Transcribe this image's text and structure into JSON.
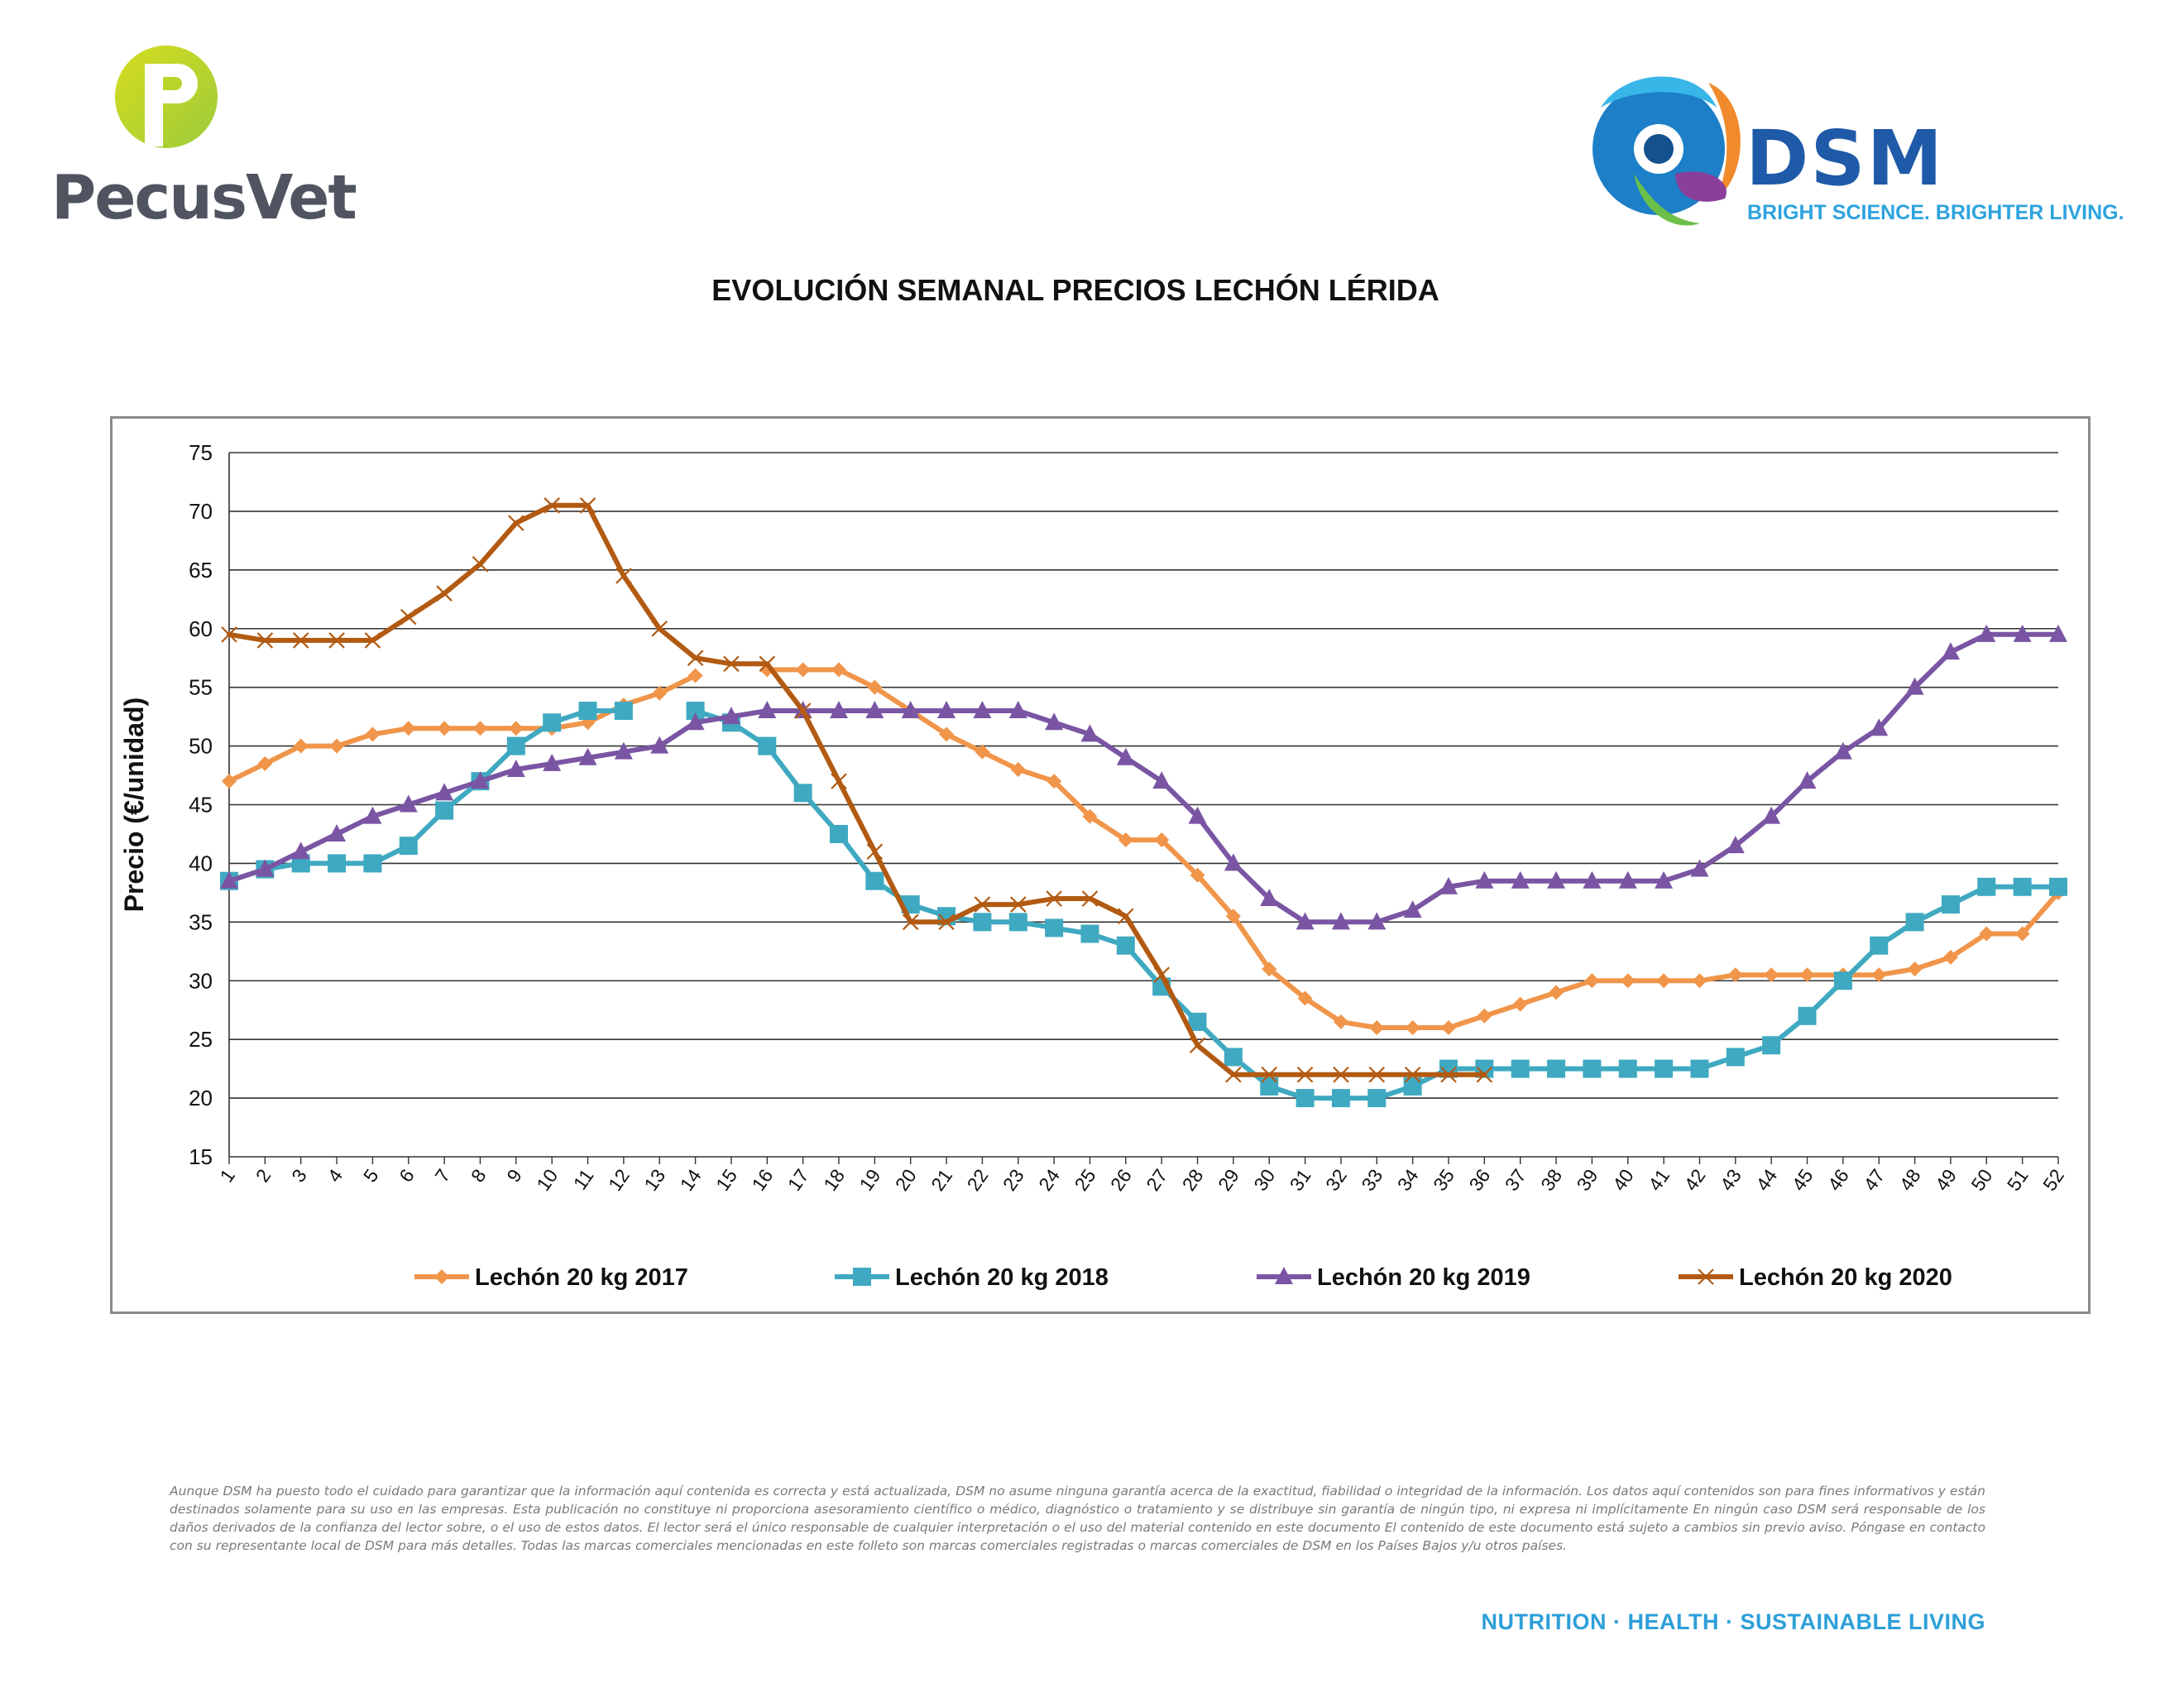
{
  "header": {
    "left_logo": "PecusVet",
    "right_logo": "DSM",
    "right_tagline": "BRIGHT SCIENCE. BRIGHTER LIVING."
  },
  "chart_data": {
    "type": "line",
    "title": "EVOLUCIÓN SEMANAL PRECIOS LECHÓN LÉRIDA",
    "xlabel": "",
    "ylabel": "Precio (€/unidad)",
    "ylim": [
      15,
      75
    ],
    "yticks": [
      15,
      20,
      25,
      30,
      35,
      40,
      45,
      50,
      55,
      60,
      65,
      70,
      75
    ],
    "grid": true,
    "legend": "bottom",
    "x": [
      1,
      2,
      3,
      4,
      5,
      6,
      7,
      8,
      9,
      10,
      11,
      12,
      13,
      14,
      15,
      16,
      17,
      18,
      19,
      20,
      21,
      22,
      23,
      24,
      25,
      26,
      27,
      28,
      29,
      30,
      31,
      32,
      33,
      34,
      35,
      36,
      37,
      38,
      39,
      40,
      41,
      42,
      43,
      44,
      45,
      46,
      47,
      48,
      49,
      50,
      51,
      52
    ],
    "series": [
      {
        "name": "Lechón 20 kg 2017",
        "color": "#f0954a",
        "marker": "diamond",
        "values": [
          47,
          48.5,
          50,
          50,
          51,
          51.5,
          51.5,
          51.5,
          51.5,
          51.5,
          52,
          53.5,
          54.5,
          56,
          null,
          56.5,
          56.5,
          56.5,
          55,
          53,
          51,
          49.5,
          48,
          47,
          44,
          42,
          42,
          39,
          35.5,
          31,
          28.5,
          26.5,
          26,
          26,
          26,
          27,
          28,
          29,
          30,
          30,
          30,
          30,
          30.5,
          30.5,
          30.5,
          30.5,
          30.5,
          31,
          32,
          34,
          34,
          37.5
        ]
      },
      {
        "name": "Lechón 20 kg 2018",
        "color": "#3fa9c1",
        "marker": "square",
        "values": [
          38.5,
          39.5,
          40,
          40,
          40,
          41.5,
          44.5,
          47,
          50,
          52,
          53,
          53,
          null,
          53,
          52,
          50,
          46,
          42.5,
          38.5,
          36.5,
          35.5,
          35,
          35,
          34.5,
          34,
          33,
          29.5,
          26.5,
          23.5,
          21,
          20,
          20,
          20,
          21,
          22.5,
          22.5,
          22.5,
          22.5,
          22.5,
          22.5,
          22.5,
          22.5,
          23.5,
          24.5,
          27,
          30,
          33,
          35,
          36.5,
          38,
          38,
          38
        ]
      },
      {
        "name": "Lechón 20 kg 2019",
        "color": "#7a55a3",
        "marker": "triangle",
        "values": [
          38.5,
          39.5,
          41,
          42.5,
          44,
          45,
          46,
          47,
          48,
          48.5,
          49,
          49.5,
          50,
          52,
          52.5,
          53,
          53,
          53,
          53,
          53,
          53,
          53,
          53,
          52,
          51,
          49,
          47,
          44,
          40,
          37,
          35,
          35,
          35,
          36,
          38,
          38.5,
          38.5,
          38.5,
          38.5,
          38.5,
          38.5,
          39.5,
          41.5,
          44,
          47,
          49.5,
          51.5,
          55,
          58,
          59.5,
          59.5,
          59.5
        ]
      },
      {
        "name": "Lechón 20 kg 2020",
        "color": "#b25a12",
        "marker": "x",
        "values": [
          59.5,
          59,
          59,
          59,
          59,
          61,
          63,
          65.5,
          69,
          70.5,
          70.5,
          64.5,
          60,
          57.5,
          57,
          57,
          53,
          47,
          41,
          35,
          35,
          36.5,
          36.5,
          37,
          37,
          35.5,
          30.5,
          24.5,
          22,
          22,
          22,
          22,
          22,
          22,
          22,
          22,
          null,
          null,
          null,
          null,
          null,
          null,
          null,
          null,
          null,
          null,
          null,
          null,
          null,
          null,
          null,
          null
        ]
      }
    ]
  },
  "disclaimer": "Aunque DSM ha puesto todo el cuidado para garantizar que la información aquí contenida es correcta y está actualizada, DSM no asume ninguna garantía acerca de la exactitud, fiabilidad o integridad de la información. Los datos aquí contenidos son para fines informativos y están destinados solamente para su uso en las empresas. Esta publicación no constituye ni proporciona asesoramiento científico o médico, diagnóstico o tratamiento y se distribuye sin garantía de ningún tipo, ni expresa ni implícitamente En ningún caso DSM será responsable de los daños derivados de la confianza del lector sobre, o el uso de estos datos. El lector será el único responsable de cualquier interpretación o el uso del material contenido en este documento El contenido de este documento está sujeto a cambios sin previo aviso. Póngase en contacto con su representante local de DSM para más detalles. Todas las marcas comerciales mencionadas en este folleto son marcas comerciales registradas o marcas comerciales de DSM en los Países Bajos y/u otros países.",
  "footer": "NUTRITION · HEALTH · SUSTAINABLE LIVING"
}
